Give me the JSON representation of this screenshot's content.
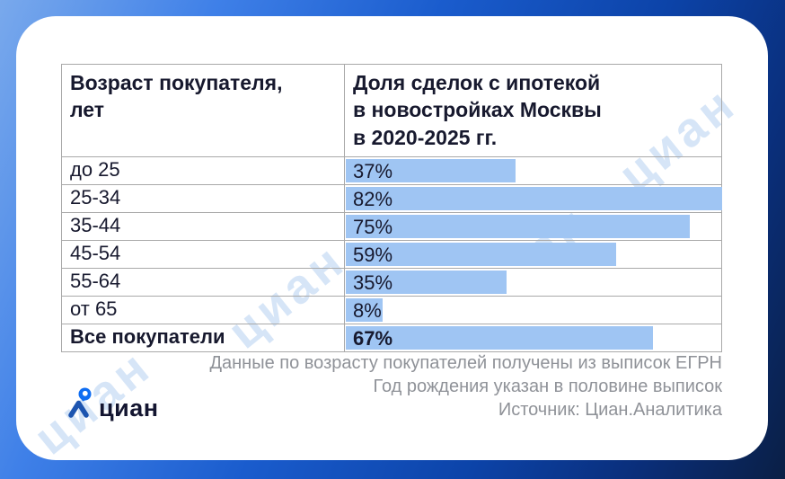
{
  "brand": {
    "logo_text": "циан"
  },
  "watermark": {
    "text": "циан"
  },
  "table": {
    "header_age": "Возраст покупателя,\nлет",
    "header_share": "Доля сделок с ипотекой\nв новостройках Москвы\nв 2020-2025 гг."
  },
  "chart_data": {
    "type": "bar",
    "orientation": "horizontal",
    "title": "Доля сделок с ипотекой в новостройках Москвы в 2020-2025 гг.",
    "xlabel": "Возраст покупателя, лет",
    "ylabel": "Доля сделок с ипотекой",
    "categories": [
      "до 25",
      "25-34",
      "35-44",
      "45-54",
      "55-64",
      "от 65",
      "Все покупатели"
    ],
    "values": [
      37,
      82,
      75,
      59,
      35,
      8,
      67
    ],
    "unit": "%",
    "bar_scale_max": 82,
    "emphasized_category": "Все покупатели",
    "bar_color": "#9fc5f3",
    "grid": false,
    "legend": false
  },
  "footer": {
    "line1": "Данные по возрасту покупателей получены из выписок ЕГРН",
    "line2": "Год рождения указан в половине выписок",
    "line3": "Источник: Циан.Аналитика"
  },
  "colors": {
    "bar": "#9fc5f3",
    "text_dark": "#17192e",
    "footer_gray": "#8f9298",
    "bg_gradient_start": "#79a9ec",
    "bg_gradient_end": "#0a1f45",
    "logo_pin_blue": "#0e6df2",
    "logo_body_blue": "#1d55b0",
    "watermark_blue": "#9ec1ed"
  }
}
